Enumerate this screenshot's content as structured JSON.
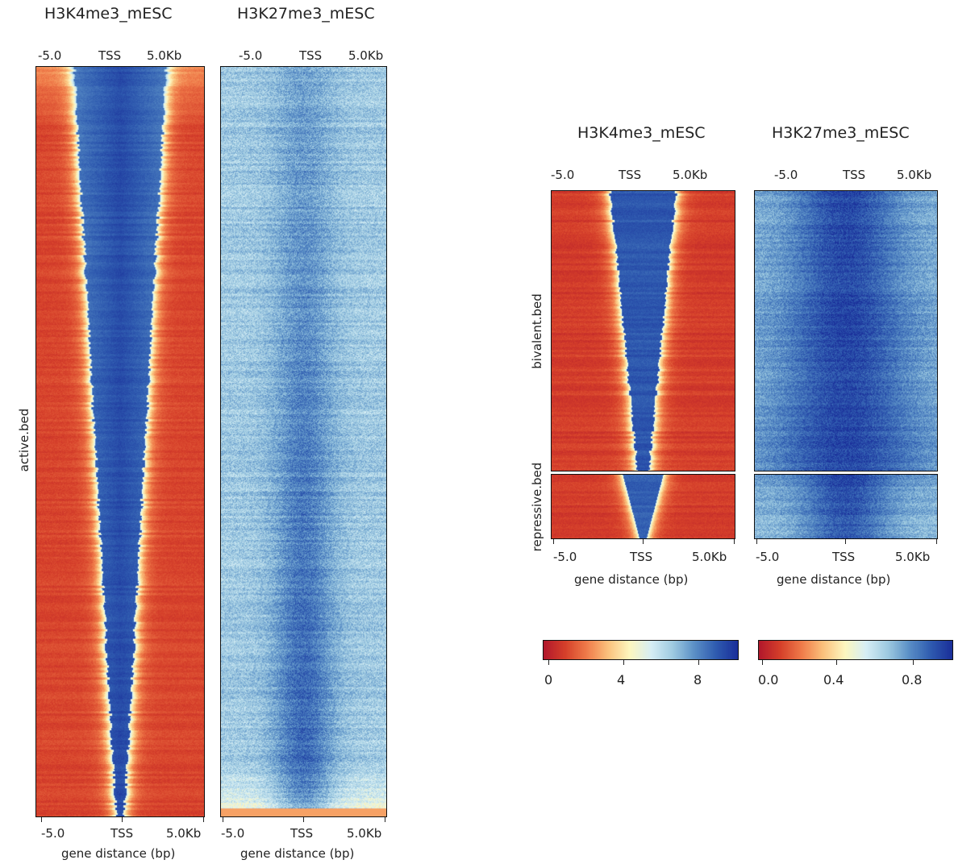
{
  "left_figure": {
    "row_label": "active.bed",
    "panels": [
      {
        "title": "H3K4me3_mESC",
        "top_ticks": [
          "-5.0",
          "TSS",
          "5.0Kb"
        ],
        "bottom_ticks": [
          "-5.0",
          "TSS",
          "5.0Kb"
        ],
        "xlabel": "gene distance (bp)"
      },
      {
        "title": "H3K27me3_mESC",
        "top_ticks": [
          "-5.0",
          "TSS",
          "5.0Kb"
        ],
        "bottom_ticks": [
          "-5.0",
          "TSS",
          "5.0Kb"
        ],
        "xlabel": "gene distance (bp)"
      }
    ]
  },
  "right_figure": {
    "row_labels": [
      "bivalent.bed",
      "repressive.bed"
    ],
    "panels": [
      {
        "title": "H3K4me3_mESC",
        "top_ticks": [
          "-5.0",
          "TSS",
          "5.0Kb"
        ],
        "bottom_ticks": [
          "-5.0",
          "TSS",
          "5.0Kb"
        ],
        "xlabel": "gene distance (bp)"
      },
      {
        "title": "H3K27me3_mESC",
        "top_ticks": [
          "-5.0",
          "TSS",
          "5.0Kb"
        ],
        "bottom_ticks": [
          "-5.0",
          "TSS",
          "5.0Kb"
        ],
        "xlabel": "gene distance (bp)"
      }
    ],
    "colorbars": [
      {
        "ticks": [
          "0",
          "4",
          "8"
        ],
        "tick_values": [
          0,
          4,
          8
        ],
        "range": [
          0,
          10
        ]
      },
      {
        "ticks": [
          "0.0",
          "0.4",
          "0.8"
        ],
        "tick_values": [
          0.0,
          0.4,
          0.8
        ],
        "range": [
          0,
          1.0
        ]
      }
    ]
  },
  "colors": {
    "colormap": [
      "#b2182b",
      "#d6402a",
      "#f07c4a",
      "#fbc37e",
      "#fdf7c0",
      "#d6eef5",
      "#9ecae1",
      "#5a8fc6",
      "#2f5bb0",
      "#1a2f9a"
    ]
  },
  "chart_data": [
    {
      "type": "heatmap",
      "title": "H3K4me3_mESC",
      "group": "active.bed",
      "x": [
        "-5.0",
        "TSS",
        "5.0Kb"
      ],
      "xlabel": "gene distance (bp)",
      "color_range": [
        0,
        10
      ],
      "pattern": "high signal (blue) centered on TSS; width narrowing from top to bottom rows; low signal (red) elsewhere"
    },
    {
      "type": "heatmap",
      "title": "H3K27me3_mESC",
      "group": "active.bed",
      "x": [
        "-5.0",
        "TSS",
        "5.0Kb"
      ],
      "xlabel": "gene distance (bp)",
      "color_range": [
        0,
        1.0
      ],
      "pattern": "moderate signal (light blue) throughout; slightly higher near TSS in lower rows"
    },
    {
      "type": "heatmap",
      "title": "H3K4me3_mESC",
      "groups": [
        "bivalent.bed",
        "repressive.bed"
      ],
      "x": [
        "-5.0",
        "TSS",
        "5.0Kb"
      ],
      "xlabel": "gene distance (bp)",
      "color_range": [
        0,
        10
      ]
    },
    {
      "type": "heatmap",
      "title": "H3K27me3_mESC",
      "groups": [
        "bivalent.bed",
        "repressive.bed"
      ],
      "x": [
        "-5.0",
        "TSS",
        "5.0Kb"
      ],
      "xlabel": "gene distance (bp)",
      "color_range": [
        0,
        1.0
      ]
    }
  ]
}
